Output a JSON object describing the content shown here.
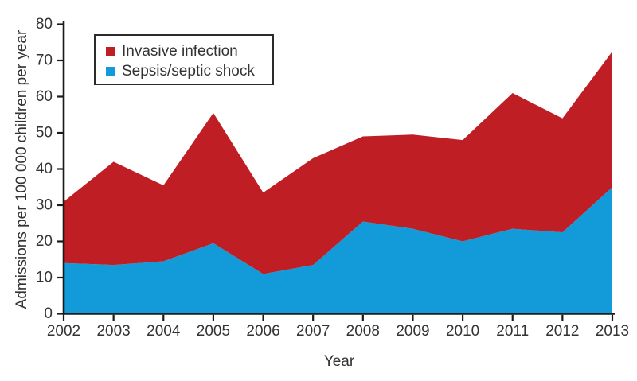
{
  "colors": {
    "invasive": "#be1e24",
    "sepsis": "#129bd8",
    "axis": "#1a1a1a",
    "text": "#333333",
    "legend_border": "#2b2b2b",
    "background": "#ffffff"
  },
  "legend": {
    "items": [
      {
        "label": "Invasive infection",
        "color_key": "invasive"
      },
      {
        "label": "Sepsis/septic shock",
        "color_key": "sepsis"
      }
    ]
  },
  "axes": {
    "y_label": "Admissions per 100 000 children per year",
    "x_label": "Year",
    "y_ticks": [
      0,
      10,
      20,
      30,
      40,
      50,
      60,
      70,
      80
    ],
    "x_ticks": [
      2002,
      2003,
      2004,
      2005,
      2006,
      2007,
      2008,
      2009,
      2010,
      2011,
      2012,
      2013
    ]
  },
  "chart_data": {
    "type": "area",
    "stacked": true,
    "title": "",
    "xlabel": "Year",
    "ylabel": "Admissions per 100 000 children per year",
    "ylim": [
      0,
      80
    ],
    "xlim": [
      2002,
      2013
    ],
    "grid": false,
    "legend_position": "top-left",
    "x": [
      2002,
      2003,
      2004,
      2005,
      2006,
      2007,
      2008,
      2009,
      2010,
      2011,
      2012,
      2013
    ],
    "series": [
      {
        "name": "Sepsis/septic shock",
        "color_key": "sepsis",
        "values": [
          14,
          13.5,
          14.5,
          19.5,
          11,
          13.5,
          25.5,
          23.5,
          20,
          23.5,
          22.5,
          35
        ]
      },
      {
        "name": "Invasive infection",
        "color_key": "invasive",
        "values": [
          17,
          28.5,
          21,
          36,
          22.5,
          29.5,
          23.5,
          26,
          28,
          37.5,
          31.5,
          37.5
        ]
      }
    ],
    "stacked_totals": [
      31,
      42,
      35.5,
      55.5,
      33.5,
      43,
      49,
      49.5,
      48,
      61,
      54,
      72.5
    ]
  }
}
